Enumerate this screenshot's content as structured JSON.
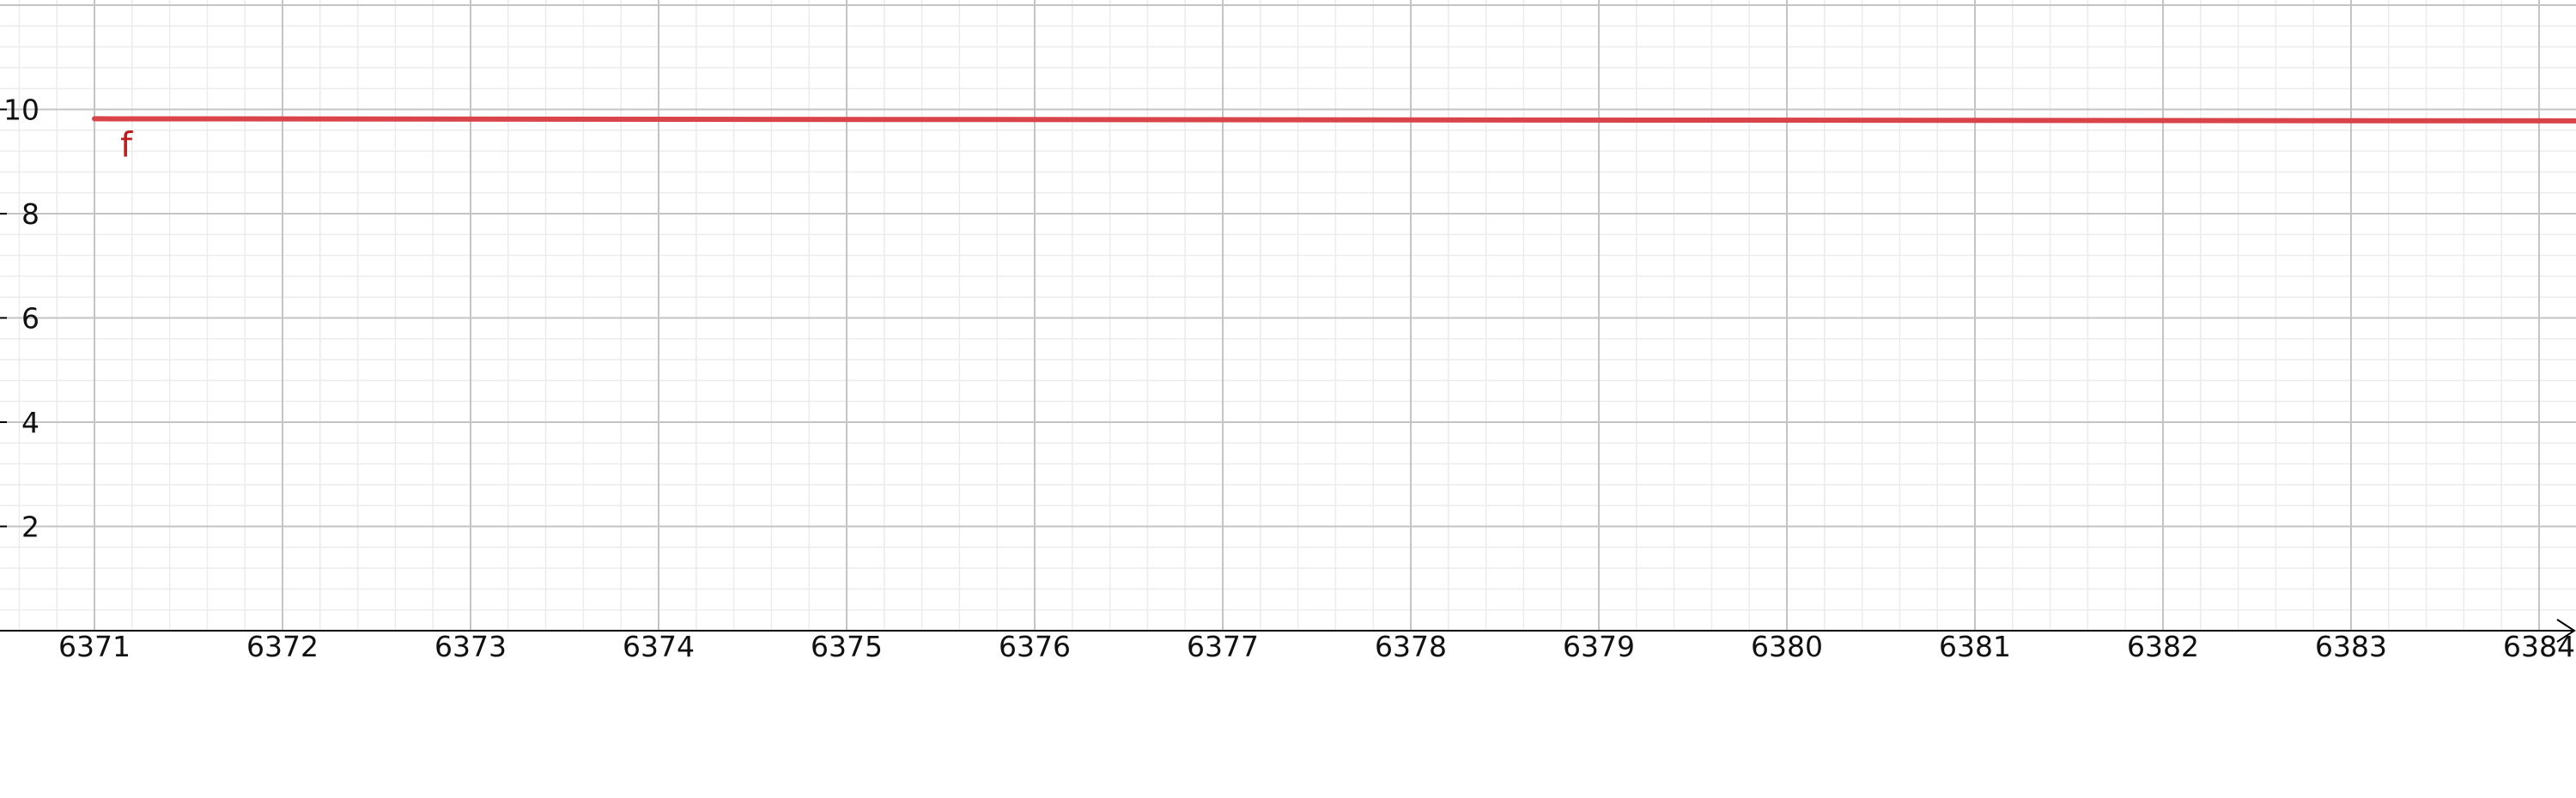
{
  "colors": {
    "background": "#ffffff",
    "minor_grid": "#ececec",
    "major_grid": "#c4c4c4",
    "axis": "#000000",
    "series": "#d9434a",
    "label": "#c21d1d"
  },
  "chart_data": {
    "type": "line",
    "title": "",
    "xlabel": "",
    "ylabel": "",
    "xlim": [
      6370.5,
      6384.2
    ],
    "ylim": [
      0,
      12
    ],
    "grid": true,
    "x_ticks": [
      6371,
      6372,
      6373,
      6374,
      6375,
      6376,
      6377,
      6378,
      6379,
      6380,
      6381,
      6382,
      6383,
      6384
    ],
    "y_ticks": [
      2,
      4,
      6,
      8,
      10
    ],
    "x_tick_labels": [
      "6371",
      "6372",
      "6373",
      "6374",
      "6375",
      "6376",
      "6377",
      "6378",
      "6379",
      "6380",
      "6381",
      "6382",
      "6383",
      "6384"
    ],
    "y_tick_labels": [
      "2",
      "4",
      "6",
      "8",
      "10"
    ],
    "series": [
      {
        "name": "f",
        "x": [
          6371,
          6384.2
        ],
        "y": [
          9.82,
          9.78
        ]
      }
    ]
  }
}
